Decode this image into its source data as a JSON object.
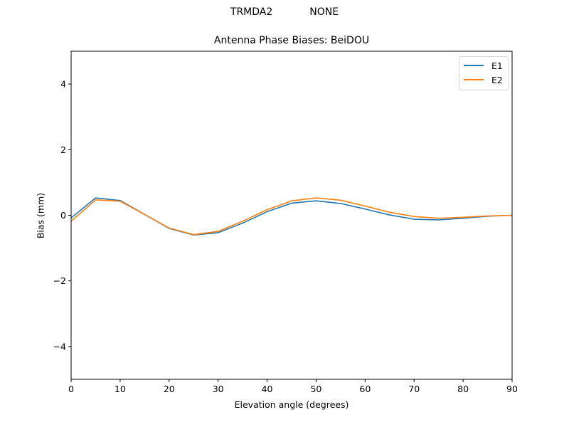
{
  "figure": {
    "suptitle_left": "TRMDA2",
    "suptitle_right": "NONE",
    "title": "Antenna Phase Biases: BeiDOU",
    "xlabel": "Elevation angle (degrees)",
    "ylabel": "Bias (mm)"
  },
  "legend": {
    "items": [
      {
        "label": "E1",
        "color": "#1f77b4"
      },
      {
        "label": "E2",
        "color": "#ff7f0e"
      }
    ]
  },
  "chart_data": {
    "type": "line",
    "title": "Antenna Phase Biases: BeiDOU",
    "suptitle": "TRMDA2          NONE",
    "xlabel": "Elevation angle (degrees)",
    "ylabel": "Bias (mm)",
    "xlim": [
      0,
      90
    ],
    "ylim": [
      -5,
      5
    ],
    "xticks": [
      0,
      10,
      20,
      30,
      40,
      50,
      60,
      70,
      80,
      90
    ],
    "yticks": [
      -4,
      -2,
      0,
      2,
      4
    ],
    "grid": false,
    "legend_position": "upper right",
    "x": [
      0,
      5,
      10,
      20,
      25,
      30,
      35,
      40,
      45,
      50,
      55,
      60,
      65,
      70,
      75,
      80,
      85,
      90
    ],
    "series": [
      {
        "name": "E1",
        "color": "#1f77b4",
        "values": [
          -0.08,
          0.53,
          0.45,
          -0.4,
          -0.6,
          -0.53,
          -0.24,
          0.11,
          0.37,
          0.44,
          0.36,
          0.19,
          0.01,
          -0.12,
          -0.14,
          -0.09,
          -0.03,
          0.0
        ]
      },
      {
        "name": "E2",
        "color": "#ff7f0e",
        "values": [
          -0.18,
          0.47,
          0.43,
          -0.39,
          -0.59,
          -0.49,
          -0.18,
          0.17,
          0.44,
          0.53,
          0.46,
          0.28,
          0.09,
          -0.04,
          -0.09,
          -0.06,
          -0.02,
          0.0
        ]
      }
    ]
  }
}
